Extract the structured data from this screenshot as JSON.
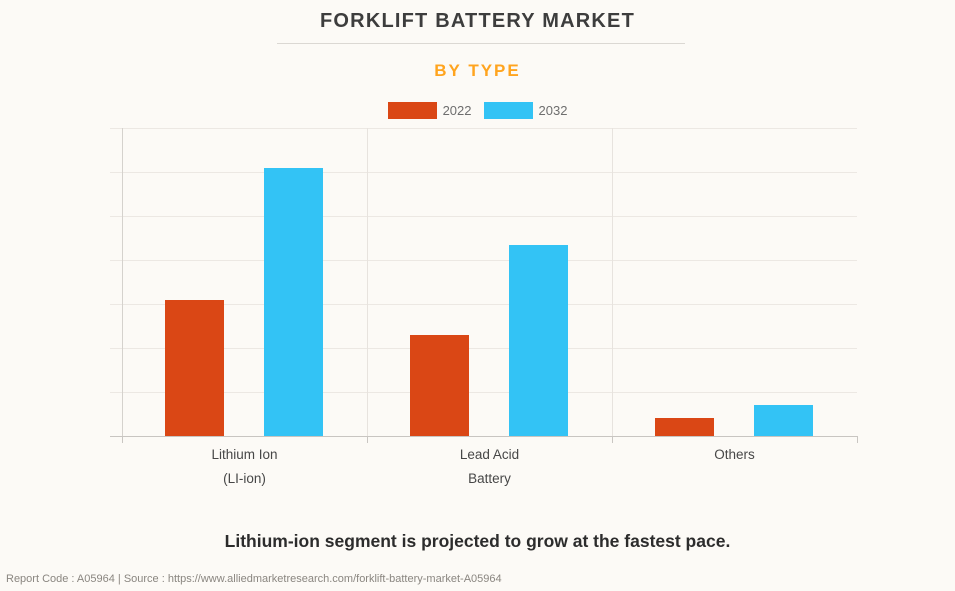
{
  "page": {
    "background_color": "#FCFAF6"
  },
  "header": {
    "title": "FORKLIFT BATTERY MARKET",
    "title_color": "#3D3D3D",
    "subtitle": "BY TYPE",
    "subtitle_color": "#FFA41E"
  },
  "chart_data": {
    "type": "bar",
    "title": "FORKLIFT BATTERY MARKET",
    "subtitle": "BY TYPE",
    "categories": [
      {
        "id": "lithium-ion",
        "label": "Lithium Ion (LI-ion)",
        "lines": [
          "Lithium Ion",
          "(LI-ion)"
        ]
      },
      {
        "id": "lead-acid-battery",
        "label": "Lead Acid Battery",
        "lines": [
          "Lead Acid",
          "Battery"
        ]
      },
      {
        "id": "others",
        "label": "Others",
        "lines": [
          "Others"
        ]
      }
    ],
    "series": [
      {
        "name": "2022",
        "color": "#DA4715",
        "values": [
          3.1,
          2.3,
          0.4
        ]
      },
      {
        "name": "2032",
        "color": "#33C3F5",
        "values": [
          6.1,
          4.35,
          0.7
        ]
      }
    ],
    "xlabel": "",
    "ylabel": "",
    "ylim": [
      0,
      7
    ],
    "y_gridline_interval": 1,
    "y_tick_labels_shown": false,
    "grid": "horizontal gridlines on, vertical separators between categories",
    "legend_position": "top-center",
    "values_unit": "relative units estimated from gridlines (no numeric axis labels shown)"
  },
  "caption": {
    "text": "Lithium-ion segment is projected to grow at the fastest pace."
  },
  "footer": {
    "text": "Report Code : A05964  |  Source : https://www.alliedmarketresearch.com/forklift-battery-market-A05964"
  }
}
